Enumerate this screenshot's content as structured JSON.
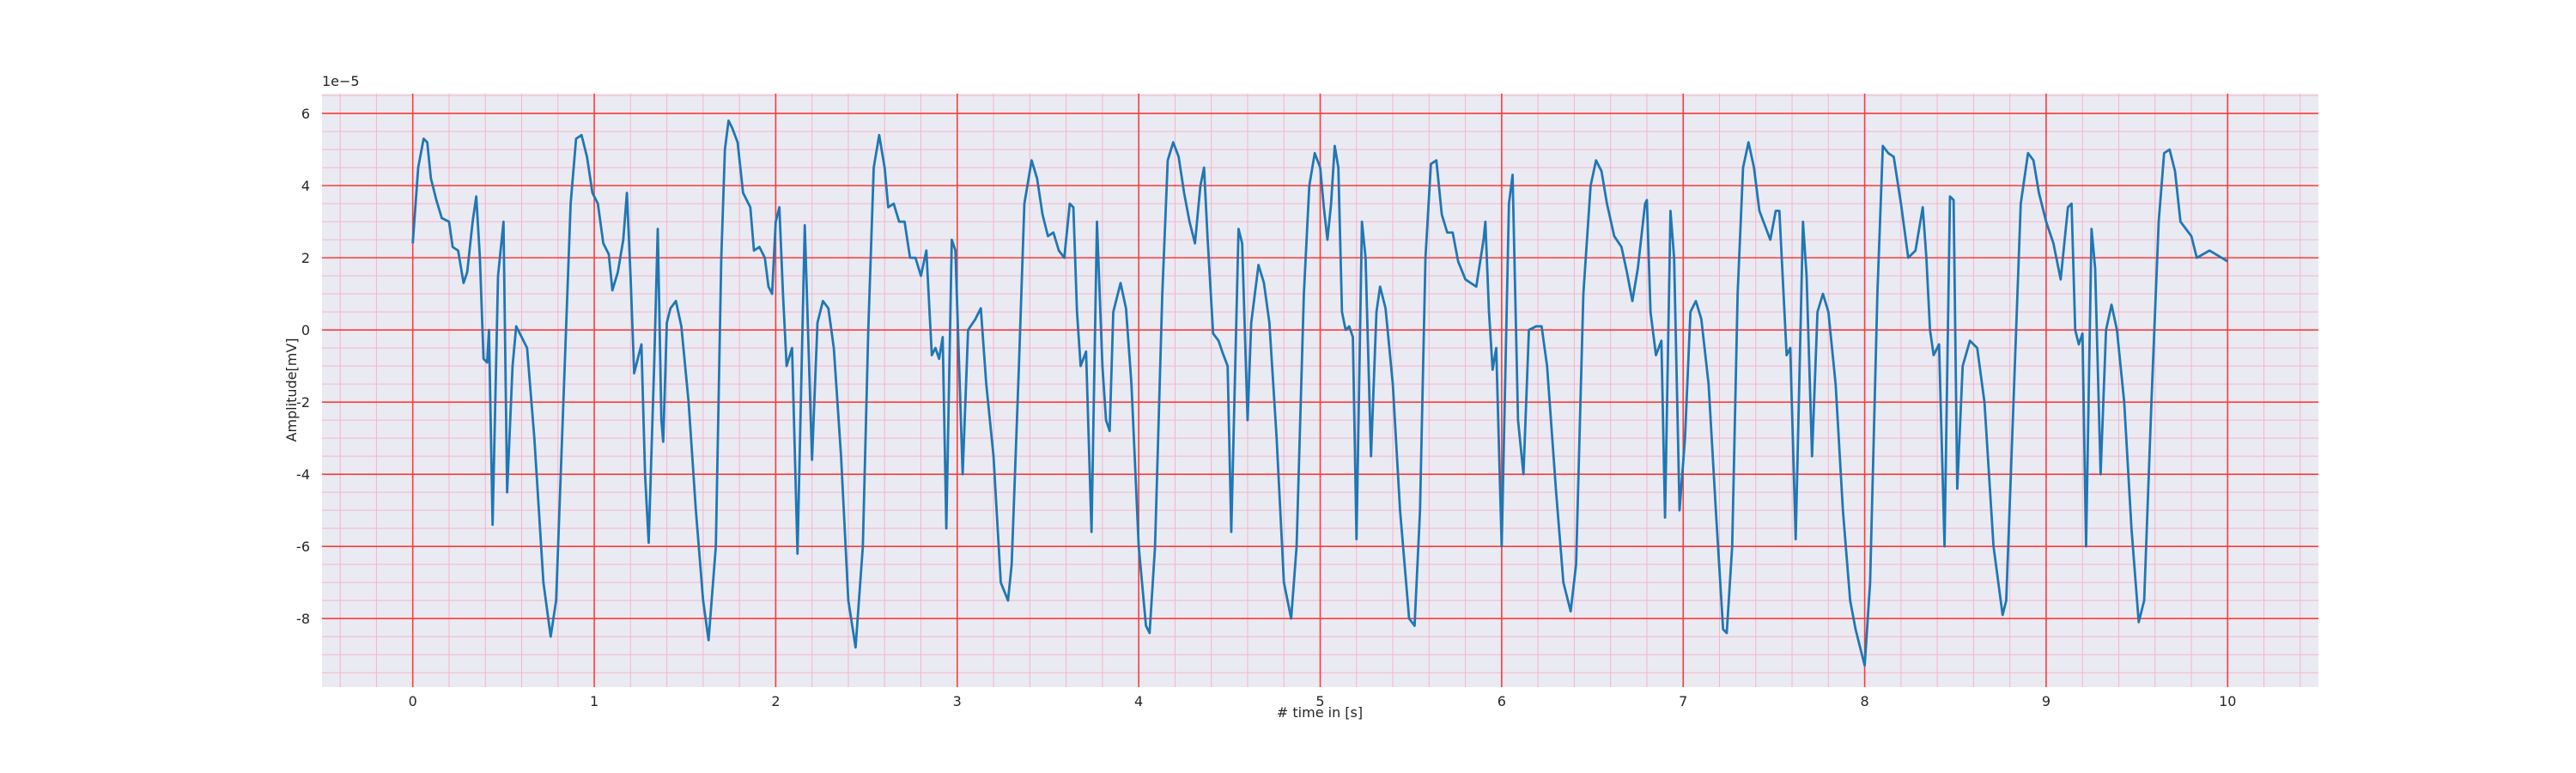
{
  "chart_data": {
    "type": "line",
    "xlabel": "# time in [s]",
    "ylabel": "Amplitude[mV]",
    "y_offset_text": "1e−5",
    "color": "#1f77b4",
    "grid": true,
    "grid_color": "#ff3b3b",
    "minor_grid_color": "#f4b6c8",
    "xminor_step": 0.2,
    "yminor_step": 0.5,
    "xlim": [
      -0.5,
      10.5
    ],
    "ylim": [
      -9.9,
      6.55
    ],
    "xticks": [
      0,
      1,
      2,
      3,
      4,
      5,
      6,
      7,
      8,
      9,
      10
    ],
    "yticks": [
      -8,
      -6,
      -4,
      -2,
      0,
      2,
      4,
      6
    ],
    "x": [
      0,
      0.03,
      0.06,
      0.08,
      0.1,
      0.13,
      0.16,
      0.2,
      0.22,
      0.25,
      0.28,
      0.3,
      0.33,
      0.35,
      0.37,
      0.39,
      0.41,
      0.42,
      0.44,
      0.47,
      0.5,
      0.52,
      0.55,
      0.57,
      0.6,
      0.63,
      0.67,
      0.72,
      0.76,
      0.79,
      0.83,
      0.87,
      0.9,
      0.93,
      0.96,
      0.99,
      1.02,
      1.05,
      1.08,
      1.1,
      1.13,
      1.16,
      1.18,
      1.2,
      1.22,
      1.24,
      1.26,
      1.28,
      1.3,
      1.33,
      1.35,
      1.37,
      1.38,
      1.4,
      1.42,
      1.45,
      1.48,
      1.52,
      1.56,
      1.6,
      1.63,
      1.67,
      1.7,
      1.72,
      1.74,
      1.76,
      1.79,
      1.82,
      1.86,
      1.88,
      1.91,
      1.94,
      1.96,
      1.98,
      2.0,
      2.02,
      2.04,
      2.06,
      2.09,
      2.12,
      2.16,
      2.2,
      2.23,
      2.26,
      2.29,
      2.32,
      2.36,
      2.4,
      2.44,
      2.48,
      2.51,
      2.54,
      2.57,
      2.6,
      2.62,
      2.65,
      2.68,
      2.71,
      2.74,
      2.77,
      2.8,
      2.83,
      2.86,
      2.88,
      2.9,
      2.92,
      2.94,
      2.97,
      2.99,
      3.03,
      3.06,
      3.1,
      3.13,
      3.16,
      3.2,
      3.24,
      3.28,
      3.3,
      3.34,
      3.37,
      3.41,
      3.44,
      3.47,
      3.5,
      3.53,
      3.56,
      3.59,
      3.62,
      3.64,
      3.66,
      3.68,
      3.71,
      3.74,
      3.77,
      3.8,
      3.82,
      3.84,
      3.86,
      3.9,
      3.93,
      3.96,
      4.0,
      4.04,
      4.06,
      4.09,
      4.13,
      4.16,
      4.19,
      4.22,
      4.25,
      4.28,
      4.31,
      4.34,
      4.36,
      4.38,
      4.41,
      4.44,
      4.46,
      4.49,
      4.51,
      4.55,
      4.57,
      4.6,
      4.62,
      4.66,
      4.69,
      4.72,
      4.76,
      4.8,
      4.84,
      4.87,
      4.91,
      4.94,
      4.97,
      5.0,
      5.02,
      5.04,
      5.06,
      5.08,
      5.1,
      5.12,
      5.14,
      5.16,
      5.18,
      5.2,
      5.23,
      5.25,
      5.28,
      5.31,
      5.33,
      5.36,
      5.4,
      5.44,
      5.49,
      5.52,
      5.55,
      5.58,
      5.61,
      5.64,
      5.67,
      5.7,
      5.73,
      5.76,
      5.8,
      5.83,
      5.86,
      5.9,
      5.91,
      5.93,
      5.95,
      5.97,
      6.0,
      6.04,
      6.06,
      6.09,
      6.12,
      6.15,
      6.19,
      6.22,
      6.25,
      6.3,
      6.34,
      6.38,
      6.41,
      6.45,
      6.49,
      6.52,
      6.55,
      6.58,
      6.62,
      6.66,
      6.69,
      6.72,
      6.75,
      6.79,
      6.8,
      6.82,
      6.85,
      6.88,
      6.9,
      6.93,
      6.95,
      6.98,
      7.01,
      7.04,
      7.07,
      7.1,
      7.14,
      7.18,
      7.22,
      7.24,
      7.27,
      7.3,
      7.33,
      7.36,
      7.39,
      7.42,
      7.45,
      7.48,
      7.51,
      7.53,
      7.55,
      7.57,
      7.59,
      7.62,
      7.66,
      7.68,
      7.71,
      7.74,
      7.77,
      7.8,
      7.84,
      7.88,
      7.92,
      7.95,
      8.0,
      8.03,
      8.07,
      8.1,
      8.13,
      8.16,
      8.2,
      8.24,
      8.28,
      8.32,
      8.34,
      8.36,
      8.38,
      8.41,
      8.44,
      8.47,
      8.49,
      8.51,
      8.54,
      8.58,
      8.62,
      8.66,
      8.71,
      8.76,
      8.78,
      8.82,
      8.86,
      8.9,
      8.93,
      8.96,
      9.0,
      9.04,
      9.08,
      9.12,
      9.14,
      9.16,
      9.18,
      9.2,
      9.22,
      9.25,
      9.27,
      9.3,
      9.33,
      9.36,
      9.39,
      9.43,
      9.47,
      9.51,
      9.54,
      9.58,
      9.62,
      9.65,
      9.68,
      9.71,
      9.74,
      9.77,
      9.8,
      9.83,
      9.9,
      10.0
    ],
    "values": [
      2.4,
      4.5,
      5.3,
      5.2,
      4.2,
      3.6,
      3.1,
      3.0,
      2.3,
      2.2,
      1.3,
      1.6,
      3.0,
      3.7,
      2.0,
      -0.8,
      -0.9,
      0,
      -5.4,
      1.5,
      3.0,
      -4.5,
      -1.0,
      0.1,
      -0.2,
      -0.5,
      -3.0,
      -7,
      -8.5,
      -7.5,
      -2,
      3.5,
      5.3,
      5.4,
      4.8,
      3.8,
      3.5,
      2.4,
      2.1,
      1.1,
      1.6,
      2.5,
      3.8,
      1.5,
      -1.2,
      -0.8,
      -0.4,
      -4,
      -5.9,
      -1,
      2.8,
      -2.5,
      -3.1,
      0.2,
      0.6,
      0.8,
      0.1,
      -2,
      -5,
      -7.5,
      -8.6,
      -6,
      2,
      5,
      5.8,
      5.6,
      5.2,
      3.8,
      3.4,
      2.2,
      2.3,
      2.0,
      1.2,
      1.0,
      3.0,
      3.4,
      1.0,
      -1.0,
      -0.5,
      -6.2,
      2.9,
      -3.6,
      0.2,
      0.8,
      0.6,
      -0.5,
      -3.5,
      -7.5,
      -8.8,
      -6,
      0,
      4.5,
      5.4,
      4.5,
      3.4,
      3.5,
      3.0,
      3.0,
      2.0,
      2.0,
      1.5,
      2.2,
      -0.7,
      -0.5,
      -0.8,
      -0.2,
      -5.5,
      2.5,
      2.2,
      -4.0,
      0,
      0.3,
      0.6,
      -1.5,
      -3.5,
      -7,
      -7.5,
      -6.5,
      -1,
      3.5,
      4.7,
      4.2,
      3.2,
      2.6,
      2.7,
      2.2,
      2.0,
      3.5,
      3.4,
      0.5,
      -1,
      -0.6,
      -5.6,
      3.0,
      -1,
      -2.5,
      -2.8,
      0.5,
      1.3,
      0.6,
      -1.5,
      -6,
      -8.2,
      -8.4,
      -6,
      1,
      4.7,
      5.2,
      4.8,
      3.8,
      3.0,
      2.4,
      4.0,
      4.5,
      2.5,
      -0.1,
      -0.3,
      -0.6,
      -1.0,
      -5.6,
      2.8,
      2.4,
      -2.5,
      0.2,
      1.8,
      1.3,
      0.2,
      -3,
      -7,
      -8,
      -6,
      1,
      4.0,
      4.9,
      4.5,
      3.4,
      2.5,
      3.5,
      5.1,
      4.5,
      0.5,
      0,
      0.1,
      -0.2,
      -5.8,
      3.0,
      2.0,
      -3.5,
      0.5,
      1.2,
      0.6,
      -1.5,
      -5,
      -8,
      -8.2,
      -5,
      2,
      4.6,
      4.7,
      3.2,
      2.7,
      2.7,
      1.9,
      1.4,
      1.3,
      1.2,
      2.5,
      3.0,
      0.5,
      -1.1,
      -0.5,
      -6,
      3.5,
      4.3,
      -2.5,
      -4,
      0,
      0.1,
      0.1,
      -1,
      -4.5,
      -7,
      -7.8,
      -6.5,
      1,
      4.0,
      4.7,
      4.4,
      3.5,
      2.6,
      2.3,
      1.6,
      0.8,
      1.7,
      3.5,
      3.6,
      0.5,
      -0.7,
      -0.3,
      -5.2,
      3.3,
      2.0,
      -5.0,
      -3,
      0.5,
      0.8,
      0.3,
      -1.5,
      -5,
      -8.3,
      -8.4,
      -6,
      1,
      4.5,
      5.2,
      4.5,
      3.3,
      2.9,
      2.5,
      3.3,
      3.3,
      1.3,
      -0.7,
      -0.5,
      -5.8,
      3.0,
      1.5,
      -3.5,
      0.5,
      1.0,
      0.5,
      -1.5,
      -5,
      -7.5,
      -8.3,
      -9.3,
      -7,
      1,
      5.1,
      4.9,
      4.8,
      3.5,
      2.0,
      2.2,
      3.4,
      2.0,
      0,
      -0.7,
      -0.4,
      -6.0,
      3.7,
      3.6,
      -4.4,
      -1,
      -0.3,
      -0.5,
      -2,
      -6,
      -7.9,
      -7.5,
      -2,
      3.5,
      4.9,
      4.7,
      3.8,
      3.0,
      2.4,
      1.4,
      3.4,
      3.5,
      0,
      -0.4,
      -0.1,
      -6,
      2.8,
      1.7,
      -4,
      0,
      0.7,
      0,
      -2,
      -5.5,
      -8.1,
      -7.5,
      -2,
      3,
      4.9,
      5.0,
      4.4,
      3.0,
      2.8,
      2.6,
      2.0,
      2.2,
      1.9
    ]
  }
}
